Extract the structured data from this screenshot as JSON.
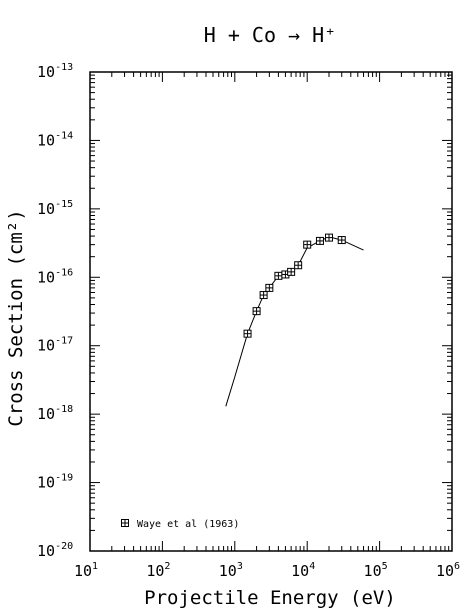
{
  "chart_data": {
    "type": "scatter",
    "title": "H + Co → H⁺",
    "xlabel": "Projectile Energy (eV)",
    "ylabel": "Cross Section (cm²)",
    "x_scale": "log",
    "y_scale": "log",
    "xlim": [
      10,
      1000000
    ],
    "ylim": [
      1e-20,
      1e-13
    ],
    "x_ticks": [
      {
        "value": 10,
        "base": "10",
        "exp": "1"
      },
      {
        "value": 100,
        "base": "10",
        "exp": "2"
      },
      {
        "value": 1000,
        "base": "10",
        "exp": "3"
      },
      {
        "value": 10000,
        "base": "10",
        "exp": "4"
      },
      {
        "value": 100000,
        "base": "10",
        "exp": "5"
      },
      {
        "value": 1000000,
        "base": "10",
        "exp": "6"
      }
    ],
    "y_ticks": [
      {
        "value": 1e-20,
        "base": "10",
        "exp": "-20"
      },
      {
        "value": 1e-19,
        "base": "10",
        "exp": "-19"
      },
      {
        "value": 1e-18,
        "base": "10",
        "exp": "-18"
      },
      {
        "value": 1e-17,
        "base": "10",
        "exp": "-17"
      },
      {
        "value": 1e-16,
        "base": "10",
        "exp": "-16"
      },
      {
        "value": 1e-15,
        "base": "10",
        "exp": "-15"
      },
      {
        "value": 1e-14,
        "base": "10",
        "exp": "-14"
      },
      {
        "value": 1e-13,
        "base": "10",
        "exp": "-13"
      }
    ],
    "grid": false,
    "legend_position": "bottom-left",
    "series": [
      {
        "name": "Waye et al (1963)",
        "marker": "boxed-plus",
        "points": [
          {
            "x": 1500,
            "y": 1.5e-17
          },
          {
            "x": 2000,
            "y": 3.2e-17
          },
          {
            "x": 2500,
            "y": 5.5e-17
          },
          {
            "x": 3000,
            "y": 7e-17
          },
          {
            "x": 4000,
            "y": 1.05e-16
          },
          {
            "x": 5000,
            "y": 1.1e-16
          },
          {
            "x": 6000,
            "y": 1.2e-16
          },
          {
            "x": 7500,
            "y": 1.5e-16
          },
          {
            "x": 10000,
            "y": 3e-16
          },
          {
            "x": 15000,
            "y": 3.4e-16
          },
          {
            "x": 20000,
            "y": 3.8e-16
          },
          {
            "x": 30000,
            "y": 3.5e-16
          }
        ]
      }
    ],
    "fit_curve": {
      "points": [
        {
          "x": 750,
          "y": 1.3e-18
        },
        {
          "x": 1000,
          "y": 3.5e-18
        },
        {
          "x": 1500,
          "y": 1.5e-17
        },
        {
          "x": 2000,
          "y": 3.2e-17
        },
        {
          "x": 2500,
          "y": 5.5e-17
        },
        {
          "x": 3000,
          "y": 7e-17
        },
        {
          "x": 4000,
          "y": 1.05e-16
        },
        {
          "x": 5000,
          "y": 1.1e-16
        },
        {
          "x": 6000,
          "y": 1.2e-16
        },
        {
          "x": 7500,
          "y": 1.5e-16
        },
        {
          "x": 10000,
          "y": 2.7e-16
        },
        {
          "x": 15000,
          "y": 3.4e-16
        },
        {
          "x": 20000,
          "y": 3.9e-16
        },
        {
          "x": 30000,
          "y": 3.5e-16
        },
        {
          "x": 60000,
          "y": 2.5e-16
        }
      ]
    }
  }
}
